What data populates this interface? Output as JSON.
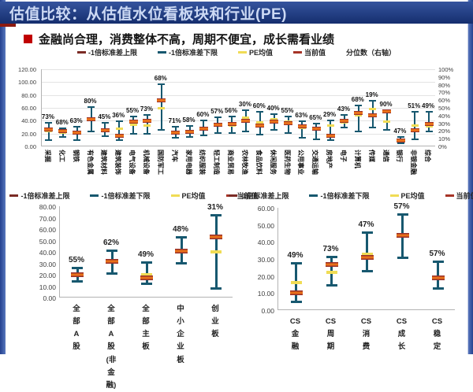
{
  "title": "估值比较：从估值水位看板块和行业(PE)",
  "headline": "金融尚合理，消费整体不高，周期不便宜，成长需看业绩",
  "colors": {
    "frame_blue": "#35549e",
    "title_bar": "#152e6e",
    "title_text": "#ccd9f4",
    "accent_red": "#8c1a10",
    "bullet_red": "#c00000",
    "bar_teal": "#17586f",
    "upper_dash": "#7b2b25",
    "lower_dash": "#17586f",
    "mean_yellow": "#f0dc55",
    "current_orange": "#e8701a",
    "current_border": "#97302a"
  },
  "chart_data": [
    {
      "id": "main",
      "type": "stock_range",
      "legend": [
        "-1倍标准差上限",
        "-1倍标准差下限",
        "PE均值",
        "当前值",
        "分位数（右轴）"
      ],
      "legend_marker_colors": [
        "#7b2b25",
        "#17586f",
        "#f0dc55",
        "#a63427",
        null
      ],
      "ylim": [
        0,
        120
      ],
      "y2lim_percent": [
        0,
        100
      ],
      "yticks": [
        "0.00",
        "20.00",
        "40.00",
        "60.00",
        "80.00",
        "100.00",
        "120.00"
      ],
      "y2ticks": [
        "0%",
        "10%",
        "20%",
        "30%",
        "40%",
        "50%",
        "60%",
        "70%",
        "80%",
        "90%",
        "100%"
      ],
      "grid": true,
      "categories": [
        "采掘",
        "化工",
        "钢铁",
        "有色金属",
        "建筑材料",
        "建筑装饰",
        "电气设备",
        "机械设备",
        "国防军工",
        "汽车",
        "家用电器",
        "纺织服装",
        "轻工制造",
        "商业贸易",
        "农林牧渔",
        "食品饮料",
        "休闲服务",
        "医药生物",
        "公用事业",
        "交通运输",
        "房地产",
        "电子",
        "计算机",
        "传媒",
        "通信",
        "银行",
        "非银金融",
        "综合"
      ],
      "series": {
        "low": [
          8,
          14,
          8,
          22,
          15,
          8,
          18,
          18,
          24,
          12,
          13,
          16,
          20,
          20,
          22,
          17,
          24,
          19,
          12,
          10,
          8,
          28,
          22,
          28,
          25,
          4,
          10,
          22
        ],
        "high": [
          38,
          30,
          32,
          62,
          38,
          40,
          48,
          50,
          98,
          32,
          33,
          42,
          46,
          48,
          58,
          55,
          52,
          48,
          41,
          37,
          42,
          50,
          65,
          72,
          58,
          16,
          55,
          55
        ],
        "pe_mean": [
          24,
          22,
          20,
          43,
          26,
          28,
          34,
          32,
          60,
          20,
          21,
          28,
          32,
          33,
          45,
          37,
          42,
          38,
          29,
          26,
          33,
          37,
          48,
          58,
          38,
          11,
          33,
          31
        ],
        "current": [
          26,
          24,
          22,
          42,
          25,
          16,
          38,
          40,
          72,
          22,
          23,
          28,
          34,
          35,
          40,
          33,
          39,
          36,
          31,
          28,
          16,
          40,
          52,
          48,
          55,
          9,
          25,
          35
        ],
        "percentile_labels": [
          "73%",
          "68%",
          "63%",
          "80%",
          "45%",
          "36%",
          "55%",
          "73%",
          "68%",
          "71%",
          "58%",
          "60%",
          "57%",
          "56%",
          "30%",
          "60%",
          "40%",
          "55%",
          "63%",
          "65%",
          "29%",
          "43%",
          "68%",
          "19%",
          "90%",
          "47%",
          "51%",
          "49%"
        ]
      }
    },
    {
      "id": "boards",
      "type": "stock_range",
      "legend": [
        "-1倍标准差上限",
        "-1倍标准差下限",
        "PE均值",
        "当前值"
      ],
      "legend_marker_colors": [
        "#7b2b25",
        "#17586f",
        "#f0dc55",
        "#a63427"
      ],
      "ylim": [
        0,
        80
      ],
      "yticks": [
        "0.00",
        "10.00",
        "20.00",
        "30.00",
        "40.00",
        "50.00",
        "60.00",
        "70.00",
        "80.00"
      ],
      "grid": false,
      "categories": [
        "全部A股",
        "全部A股\n(非金融)",
        "全部主板",
        "中小企业板",
        "创业板"
      ],
      "series": {
        "low": [
          13,
          20,
          11,
          29,
          7
        ],
        "high": [
          27,
          42,
          32,
          54,
          73
        ],
        "pe_mean": [
          21,
          32,
          20,
          41,
          40
        ],
        "current": [
          20,
          32,
          17,
          41,
          53
        ],
        "percentile_labels": [
          "55%",
          "62%",
          "49%",
          "48%",
          "31%"
        ]
      }
    },
    {
      "id": "cs_styles",
      "type": "stock_range",
      "legend": [
        "-1倍标准差上限",
        "-1倍标准差下限",
        "PE均值",
        "当前值"
      ],
      "legend_marker_colors": [
        "#7b2b25",
        "#17586f",
        "#f0dc55",
        "#a63427"
      ],
      "ylim": [
        0,
        60
      ],
      "yticks": [
        "0.00",
        "10.00",
        "20.00",
        "30.00",
        "40.00",
        "50.00",
        "60.00"
      ],
      "grid": false,
      "categories": [
        "CS金融",
        "CS周期",
        "CS消费",
        "CS成长",
        "CS稳定"
      ],
      "series": {
        "low": [
          4,
          14,
          22,
          30,
          12
        ],
        "high": [
          28,
          32,
          46,
          57,
          29
        ],
        "pe_mean": [
          16,
          22,
          33,
          44,
          19
        ],
        "current": [
          10,
          27,
          31,
          44,
          19
        ],
        "percentile_labels": [
          "49%",
          "73%",
          "47%",
          "57%",
          "57%"
        ]
      }
    }
  ]
}
